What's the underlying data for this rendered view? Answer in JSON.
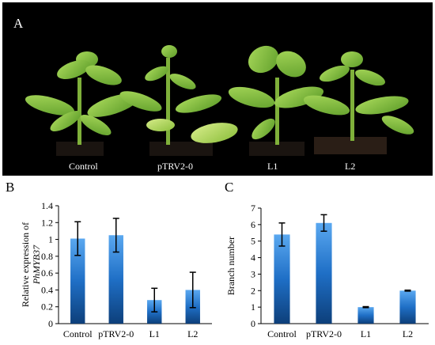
{
  "photo": {
    "panel_letter": "A",
    "labels": [
      "Control",
      "pTRV2-0",
      "L1",
      "L2"
    ]
  },
  "chart_data": [
    {
      "panel": "B",
      "type": "bar",
      "title": "",
      "categories": [
        "Control",
        "pTRV2-0",
        "L1",
        "L2"
      ],
      "values": [
        1.01,
        1.05,
        0.28,
        0.4
      ],
      "errors": [
        0.2,
        0.2,
        0.14,
        0.21
      ],
      "ylabel_line1": "Relative expression of",
      "ylabel_line2": "PhMYB37",
      "xlabel": "",
      "ylim": [
        0,
        1.4
      ],
      "yticks": [
        0,
        0.2,
        0.4,
        0.6,
        0.8,
        1,
        1.2,
        1.4
      ],
      "ytick_labels": [
        "0",
        "0.2",
        "0.4",
        "0.6",
        "0.8",
        "1",
        "1.2",
        "1.4"
      ],
      "bar_color": "#1f6fc6",
      "grid": false,
      "legend": "none"
    },
    {
      "panel": "C",
      "type": "bar",
      "title": "",
      "categories": [
        "Control",
        "pTRV2-0",
        "L1",
        "L2"
      ],
      "values": [
        5.4,
        6.1,
        1.0,
        2.0
      ],
      "errors": [
        0.7,
        0.5,
        0.03,
        0.03
      ],
      "ylabel_line1": "Branch number",
      "ylabel_line2": "",
      "xlabel": "",
      "ylim": [
        0,
        7
      ],
      "yticks": [
        0,
        1,
        2,
        3,
        4,
        5,
        6,
        7
      ],
      "ytick_labels": [
        "0",
        "1",
        "2",
        "3",
        "4",
        "5",
        "6",
        "7"
      ],
      "bar_color": "#1f6fc6",
      "grid": false,
      "legend": "none"
    }
  ]
}
